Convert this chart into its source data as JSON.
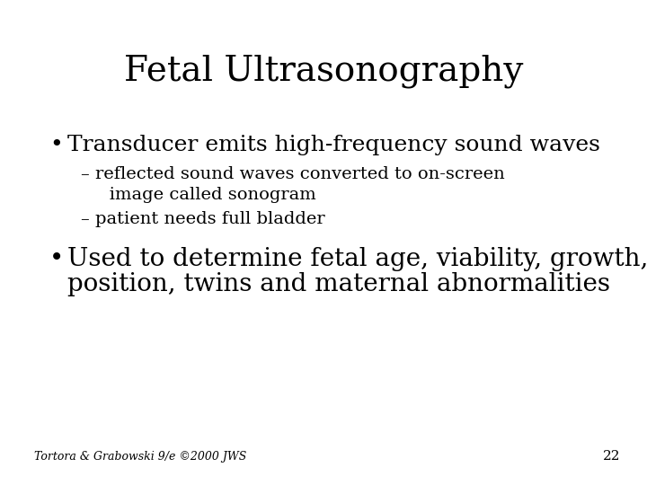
{
  "title": "Fetal Ultrasonography",
  "title_fontsize": 28,
  "background_color": "#ffffff",
  "text_color": "#000000",
  "bullet1": "Transducer emits high-frequency sound waves",
  "bullet1_fontsize": 18,
  "sub1a_line1": "– reflected sound waves converted to on-screen",
  "sub1a_line2": "   image called sonogram",
  "sub1b": "– patient needs full bladder",
  "sub_fontsize": 14,
  "bullet2_line1": "Used to determine fetal age, viability, growth,",
  "bullet2_line2": "position, twins and maternal abnormalities",
  "bullet2_fontsize": 20,
  "footer": "Tortora & Grabowski 9/e ©2000 JWS",
  "footer_fontsize": 9,
  "page_number": "22",
  "page_number_fontsize": 11,
  "font_family": "DejaVu Serif"
}
